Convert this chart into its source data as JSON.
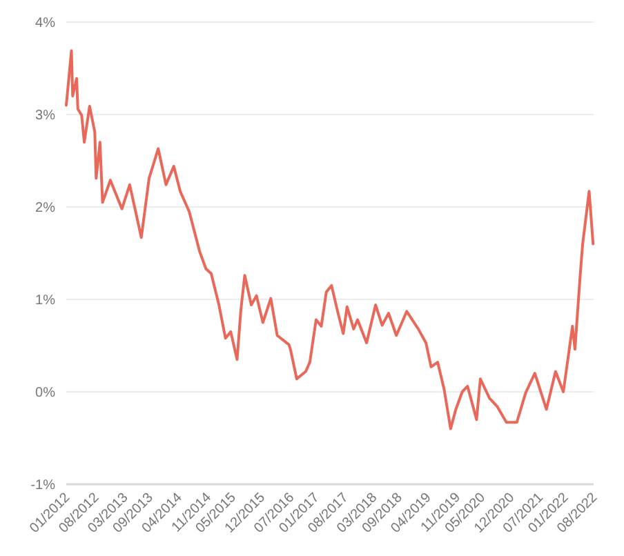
{
  "chart_data": {
    "type": "line",
    "x": [
      "2012-01-01",
      "2012-02-08",
      "2012-02-17",
      "2012-03-17",
      "2012-03-26",
      "2012-04-23",
      "2012-05-12",
      "2012-06-20",
      "2012-07-28",
      "2012-08-07",
      "2012-09-04",
      "2012-09-23",
      "2012-11-19",
      "2013-02-12",
      "2013-04-10",
      "2013-07-04",
      "2013-08-30",
      "2013-11-05",
      "2014-01-01",
      "2014-02-27",
      "2014-04-15",
      "2014-06-20",
      "2014-09-04",
      "2014-10-21",
      "2014-11-28",
      "2015-01-24",
      "2015-03-13",
      "2015-04-20",
      "2015-06-06",
      "2015-07-04",
      "2015-08-01",
      "2015-09-18",
      "2015-10-26",
      "2015-12-12",
      "2016-02-08",
      "2016-03-26",
      "2016-06-20",
      "2016-07-01",
      "2016-08-16",
      "2016-10-21",
      "2016-11-20",
      "2017-01-05",
      "2017-02-12",
      "2017-03-21",
      "2017-04-28",
      "2017-06-15",
      "2017-07-23",
      "2017-08-20",
      "2017-10-07",
      "2017-11-05",
      "2018-01-10",
      "2018-03-17",
      "2018-05-04",
      "2018-06-20",
      "2018-08-16",
      "2018-10-31",
      "2019-01-24",
      "2019-03-21",
      "2019-04-28",
      "2019-06-15",
      "2019-08-01",
      "2019-09-18",
      "2019-10-26",
      "2019-12-12",
      "2020-01-20",
      "2020-03-26",
      "2020-04-23",
      "2020-06-29",
      "2020-08-25",
      "2020-10-31",
      "2021-01-15",
      "2021-03-21",
      "2021-05-27",
      "2021-08-20",
      "2021-10-26",
      "2021-12-22",
      "2022-02-27",
      "2022-03-17",
      "2022-04-23",
      "2022-05-12",
      "2022-06-29",
      "2022-07-28"
    ],
    "series": [
      {
        "color": "#e8685a",
        "values": [
          3.1,
          3.69,
          3.2,
          3.39,
          3.06,
          2.99,
          2.7,
          3.09,
          2.81,
          2.31,
          2.7,
          2.05,
          2.29,
          1.98,
          2.24,
          1.67,
          2.31,
          2.63,
          2.24,
          2.44,
          2.17,
          1.95,
          1.52,
          1.33,
          1.28,
          0.94,
          0.58,
          0.65,
          0.35,
          0.89,
          1.26,
          0.94,
          1.04,
          0.75,
          1.01,
          0.61,
          0.51,
          0.46,
          0.14,
          0.22,
          0.32,
          0.78,
          0.71,
          1.08,
          1.15,
          0.85,
          0.63,
          0.92,
          0.68,
          0.78,
          0.53,
          0.94,
          0.72,
          0.85,
          0.61,
          0.87,
          0.68,
          0.53,
          0.27,
          0.32,
          0.03,
          -0.4,
          -0.19,
          0,
          0.06,
          -0.3,
          0.14,
          -0.07,
          -0.16,
          -0.33,
          -0.33,
          -0.01,
          0.2,
          -0.19,
          0.22,
          0,
          0.71,
          0.46,
          1.23,
          1.59,
          2.17,
          1.6
        ]
      }
    ],
    "xlim": [
      "2012-01-01",
      "2022-08-01"
    ],
    "xticks": [
      {
        "value": "2012-01-01",
        "label": "01/2012"
      },
      {
        "value": "2012-08-01",
        "label": "08/2012"
      },
      {
        "value": "2013-03-01",
        "label": "03/2013"
      },
      {
        "value": "2013-09-01",
        "label": "09/2013"
      },
      {
        "value": "2014-04-01",
        "label": "04/2014"
      },
      {
        "value": "2014-11-01",
        "label": "11/2014"
      },
      {
        "value": "2015-05-01",
        "label": "05/2015"
      },
      {
        "value": "2015-12-01",
        "label": "12/2015"
      },
      {
        "value": "2016-07-01",
        "label": "07/2016"
      },
      {
        "value": "2017-01-01",
        "label": "01/2017"
      },
      {
        "value": "2017-08-01",
        "label": "08/2017"
      },
      {
        "value": "2018-03-01",
        "label": "03/2018"
      },
      {
        "value": "2018-09-01",
        "label": "09/2018"
      },
      {
        "value": "2019-04-01",
        "label": "04/2019"
      },
      {
        "value": "2019-11-01",
        "label": "11/2019"
      },
      {
        "value": "2020-05-01",
        "label": "05/2020"
      },
      {
        "value": "2020-12-01",
        "label": "12/2020"
      },
      {
        "value": "2021-07-01",
        "label": "07/2021"
      },
      {
        "value": "2022-01-01",
        "label": "01/2022"
      },
      {
        "value": "2022-08-01",
        "label": "08/2022"
      }
    ],
    "ylim": [
      -1,
      4
    ],
    "yticks": [
      {
        "value": -1,
        "label": "-1%"
      },
      {
        "value": 0,
        "label": "0%"
      },
      {
        "value": 1,
        "label": "1%"
      },
      {
        "value": 2,
        "label": "2%"
      },
      {
        "value": 3,
        "label": "3%"
      },
      {
        "value": 4,
        "label": "4%"
      }
    ],
    "grid": "y",
    "line_style": "solid",
    "marker": "none"
  }
}
